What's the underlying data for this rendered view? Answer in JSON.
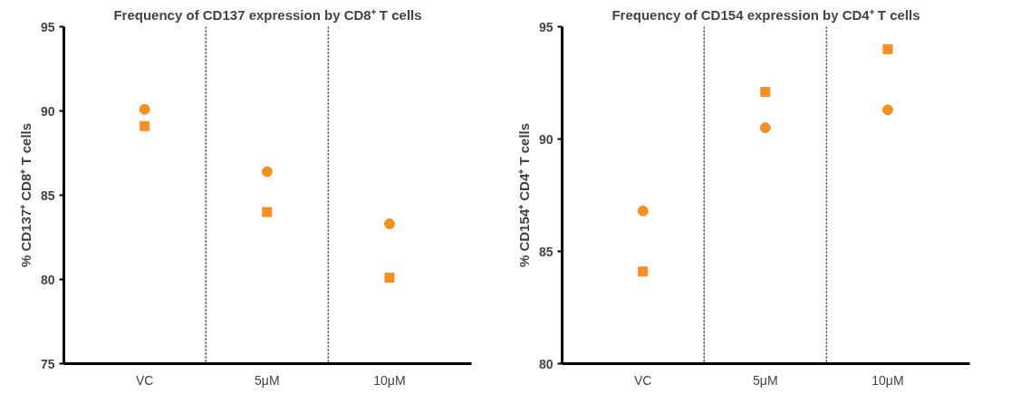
{
  "chart_data": [
    {
      "type": "scatter",
      "title": "Frequency of CD137 expression by CD8⁺ T cells",
      "ylabel": "% CD137⁺ CD8⁺ T cells",
      "categories": [
        "VC",
        "5μM",
        "10μM"
      ],
      "series": [
        {
          "marker": "circle",
          "color": "#f5901e",
          "values": [
            90.1,
            86.4,
            83.3
          ]
        },
        {
          "marker": "square",
          "color": "#f5901e",
          "values": [
            89.1,
            84.0,
            80.1
          ]
        }
      ],
      "ylim": [
        75,
        95
      ],
      "yticks": [
        75,
        80,
        85,
        90,
        95
      ],
      "grid": false
    },
    {
      "type": "scatter",
      "title": "Frequency of CD154 expression by CD4⁺ T cells",
      "ylabel": "% CD154⁺ CD4⁺ T cells",
      "categories": [
        "VC",
        "5μM",
        "10μM"
      ],
      "series": [
        {
          "marker": "circle",
          "color": "#f5901e",
          "values": [
            86.8,
            90.5,
            91.3
          ]
        },
        {
          "marker": "square",
          "color": "#f5901e",
          "values": [
            84.1,
            92.1,
            94.0
          ]
        }
      ],
      "ylim": [
        80,
        95
      ],
      "yticks": [
        80,
        85,
        90,
        95
      ],
      "grid": false
    }
  ]
}
